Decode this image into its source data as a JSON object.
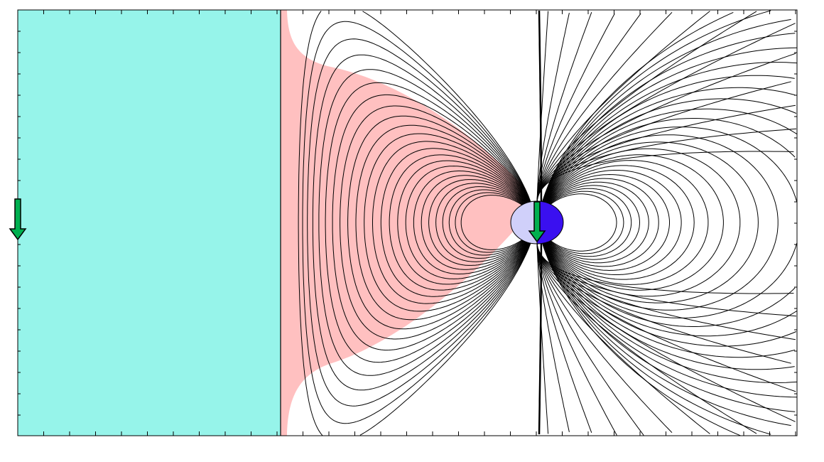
{
  "diagram": {
    "colors": {
      "background": "#ffffff",
      "upstream_region": "#96f4ea",
      "boundary_layer": "#ffc0c0",
      "planet_day_side": "#d0d0fa",
      "planet_night_side": "#3a10f0",
      "field_lines": "#000000",
      "arrow_fill": "#00b050"
    },
    "icons": {
      "imf_arrow": "arrow-down-icon",
      "dipole_arrow": "arrow-down-icon"
    }
  }
}
